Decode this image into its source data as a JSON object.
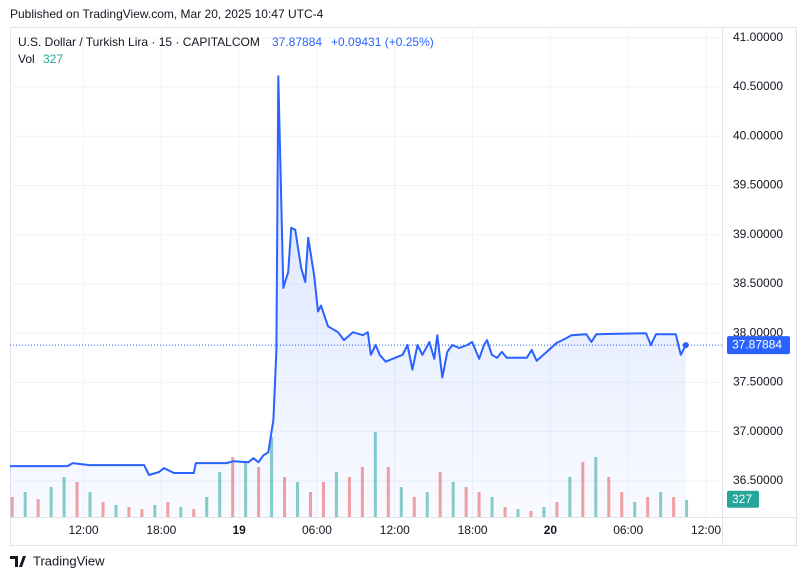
{
  "header": {
    "published": "Published on TradingView.com, Mar 20, 2025 10:47 UTC-4",
    "symbol": "U.S. Dollar / Turkish Lira · 15 · CAPITALCOM",
    "change": "+0.09431 (+0.25%)",
    "vol_label": "Vol"
  },
  "footer": {
    "brand": "TradingView"
  },
  "chart_data": {
    "type": "line",
    "color": "#2962ff",
    "last": 37.87884,
    "grid": true,
    "x": [
      6.33,
      10.77,
      11.16,
      12.46,
      16.67,
      17.05,
      17.82,
      18.21,
      18.97,
      20.5,
      20.66,
      23.03,
      23.57,
      24.72,
      25.1,
      25.49,
      25.87,
      26.25,
      26.64,
      26.87,
      27.02,
      27.4,
      27.78,
      28.01,
      28.32,
      28.78,
      29.09,
      29.32,
      29.78,
      30.08,
      30.31,
      30.85,
      31.62,
      32.08,
      32.77,
      33.54,
      33.92,
      34.15,
      34.53,
      34.84,
      35.3,
      35.83,
      36.6,
      36.98,
      37.36,
      37.75,
      38.13,
      38.67,
      39.05,
      39.28,
      39.66,
      40.05,
      40.43,
      40.97,
      41.58,
      41.97,
      42.5,
      42.88,
      43.11,
      43.49,
      43.88,
      44.26,
      44.64,
      46.18,
      46.56,
      46.94,
      47.71,
      48.47,
      49.24,
      49.62,
      50.77,
      51.16,
      51.54,
      55.37,
      55.75,
      56.14,
      57.67,
      58.05,
      58.44
    ],
    "values": [
      36.65,
      36.65,
      36.68,
      36.66,
      36.66,
      36.56,
      36.59,
      36.63,
      36.58,
      36.58,
      36.68,
      36.68,
      36.7,
      36.69,
      36.73,
      36.69,
      36.76,
      36.79,
      37.12,
      37.83,
      40.61,
      38.46,
      38.62,
      39.07,
      39.05,
      38.66,
      38.52,
      38.97,
      38.59,
      38.22,
      38.28,
      38.07,
      38.01,
      37.93,
      38.01,
      37.98,
      38.01,
      37.78,
      37.88,
      37.78,
      37.71,
      37.74,
      37.78,
      37.88,
      37.63,
      37.88,
      37.78,
      37.91,
      37.74,
      37.98,
      37.55,
      37.81,
      37.88,
      37.85,
      37.88,
      37.91,
      37.74,
      37.88,
      37.93,
      37.78,
      37.75,
      37.81,
      37.75,
      37.75,
      37.83,
      37.72,
      37.81,
      37.9,
      37.95,
      37.98,
      37.99,
      37.91,
      37.99,
      38.0,
      37.88,
      37.99,
      37.99,
      37.78,
      37.87884
    ],
    "xlim": [
      6.33,
      61.23
    ],
    "ylim": [
      36.133,
      41.11
    ],
    "xticks": [
      {
        "value": 12,
        "label": "12:00"
      },
      {
        "value": 18,
        "label": "18:00"
      },
      {
        "value": 24,
        "label": "19"
      },
      {
        "value": 30,
        "label": "06:00"
      },
      {
        "value": 36,
        "label": "12:00"
      },
      {
        "value": 42,
        "label": "18:00"
      },
      {
        "value": 48,
        "label": "20"
      },
      {
        "value": 54,
        "label": "06:00"
      },
      {
        "value": 60,
        "label": "12:00"
      }
    ],
    "yticks": [
      {
        "value": 36.5,
        "label": "36.50000"
      },
      {
        "value": 37,
        "label": "37.00000"
      },
      {
        "value": 37.5,
        "label": "37.50000"
      },
      {
        "value": 38,
        "label": "38.00000"
      },
      {
        "value": 38.5,
        "label": "38.50000"
      },
      {
        "value": 39,
        "label": "39.00000"
      },
      {
        "value": 39.5,
        "label": "39.50000"
      },
      {
        "value": 40,
        "label": "40.00000"
      },
      {
        "value": 40.5,
        "label": "40.50000"
      },
      {
        "value": 41,
        "label": "41.00000"
      }
    ],
    "volume": {
      "last": 327,
      "ylim": [
        0,
        9310
      ],
      "up_color": "rgba(38,166,154,0.55)",
      "down_color": "rgba(239,83,80,0.55)",
      "x": [
        6.5,
        7.5,
        8.5,
        9.5,
        10.5,
        11.5,
        12.5,
        13.5,
        14.5,
        15.5,
        16.5,
        17.5,
        18.5,
        19.5,
        20.5,
        21.5,
        22.5,
        23.5,
        24.5,
        25.5,
        26.5,
        27.5,
        28.5,
        29.5,
        30.5,
        31.5,
        32.5,
        33.5,
        34.5,
        35.5,
        36.5,
        37.5,
        38.5,
        39.5,
        40.5,
        41.5,
        42.5,
        43.5,
        44.5,
        45.5,
        46.5,
        47.5,
        48.5,
        49.5,
        50.5,
        51.5,
        52.5,
        53.5,
        54.5,
        55.5,
        56.5,
        57.5,
        58.5
      ],
      "values": [
        380,
        475,
        340,
        570,
        760,
        665,
        475,
        285,
        230,
        190,
        150,
        230,
        285,
        190,
        150,
        380,
        855,
        1140,
        1045,
        950,
        1520,
        760,
        665,
        475,
        665,
        855,
        760,
        950,
        1615,
        950,
        570,
        380,
        475,
        855,
        665,
        570,
        475,
        380,
        190,
        150,
        115,
        190,
        285,
        760,
        1045,
        1140,
        760,
        475,
        285,
        380,
        475,
        380,
        327
      ],
      "rising": [
        false,
        true,
        false,
        true,
        true,
        false,
        true,
        false,
        true,
        false,
        false,
        true,
        false,
        true,
        false,
        true,
        true,
        false,
        true,
        false,
        true,
        false,
        true,
        false,
        false,
        true,
        false,
        false,
        true,
        false,
        true,
        false,
        true,
        false,
        true,
        false,
        false,
        true,
        false,
        true,
        false,
        true,
        false,
        true,
        false,
        true,
        false,
        false,
        true,
        false,
        true,
        false,
        true
      ]
    }
  }
}
